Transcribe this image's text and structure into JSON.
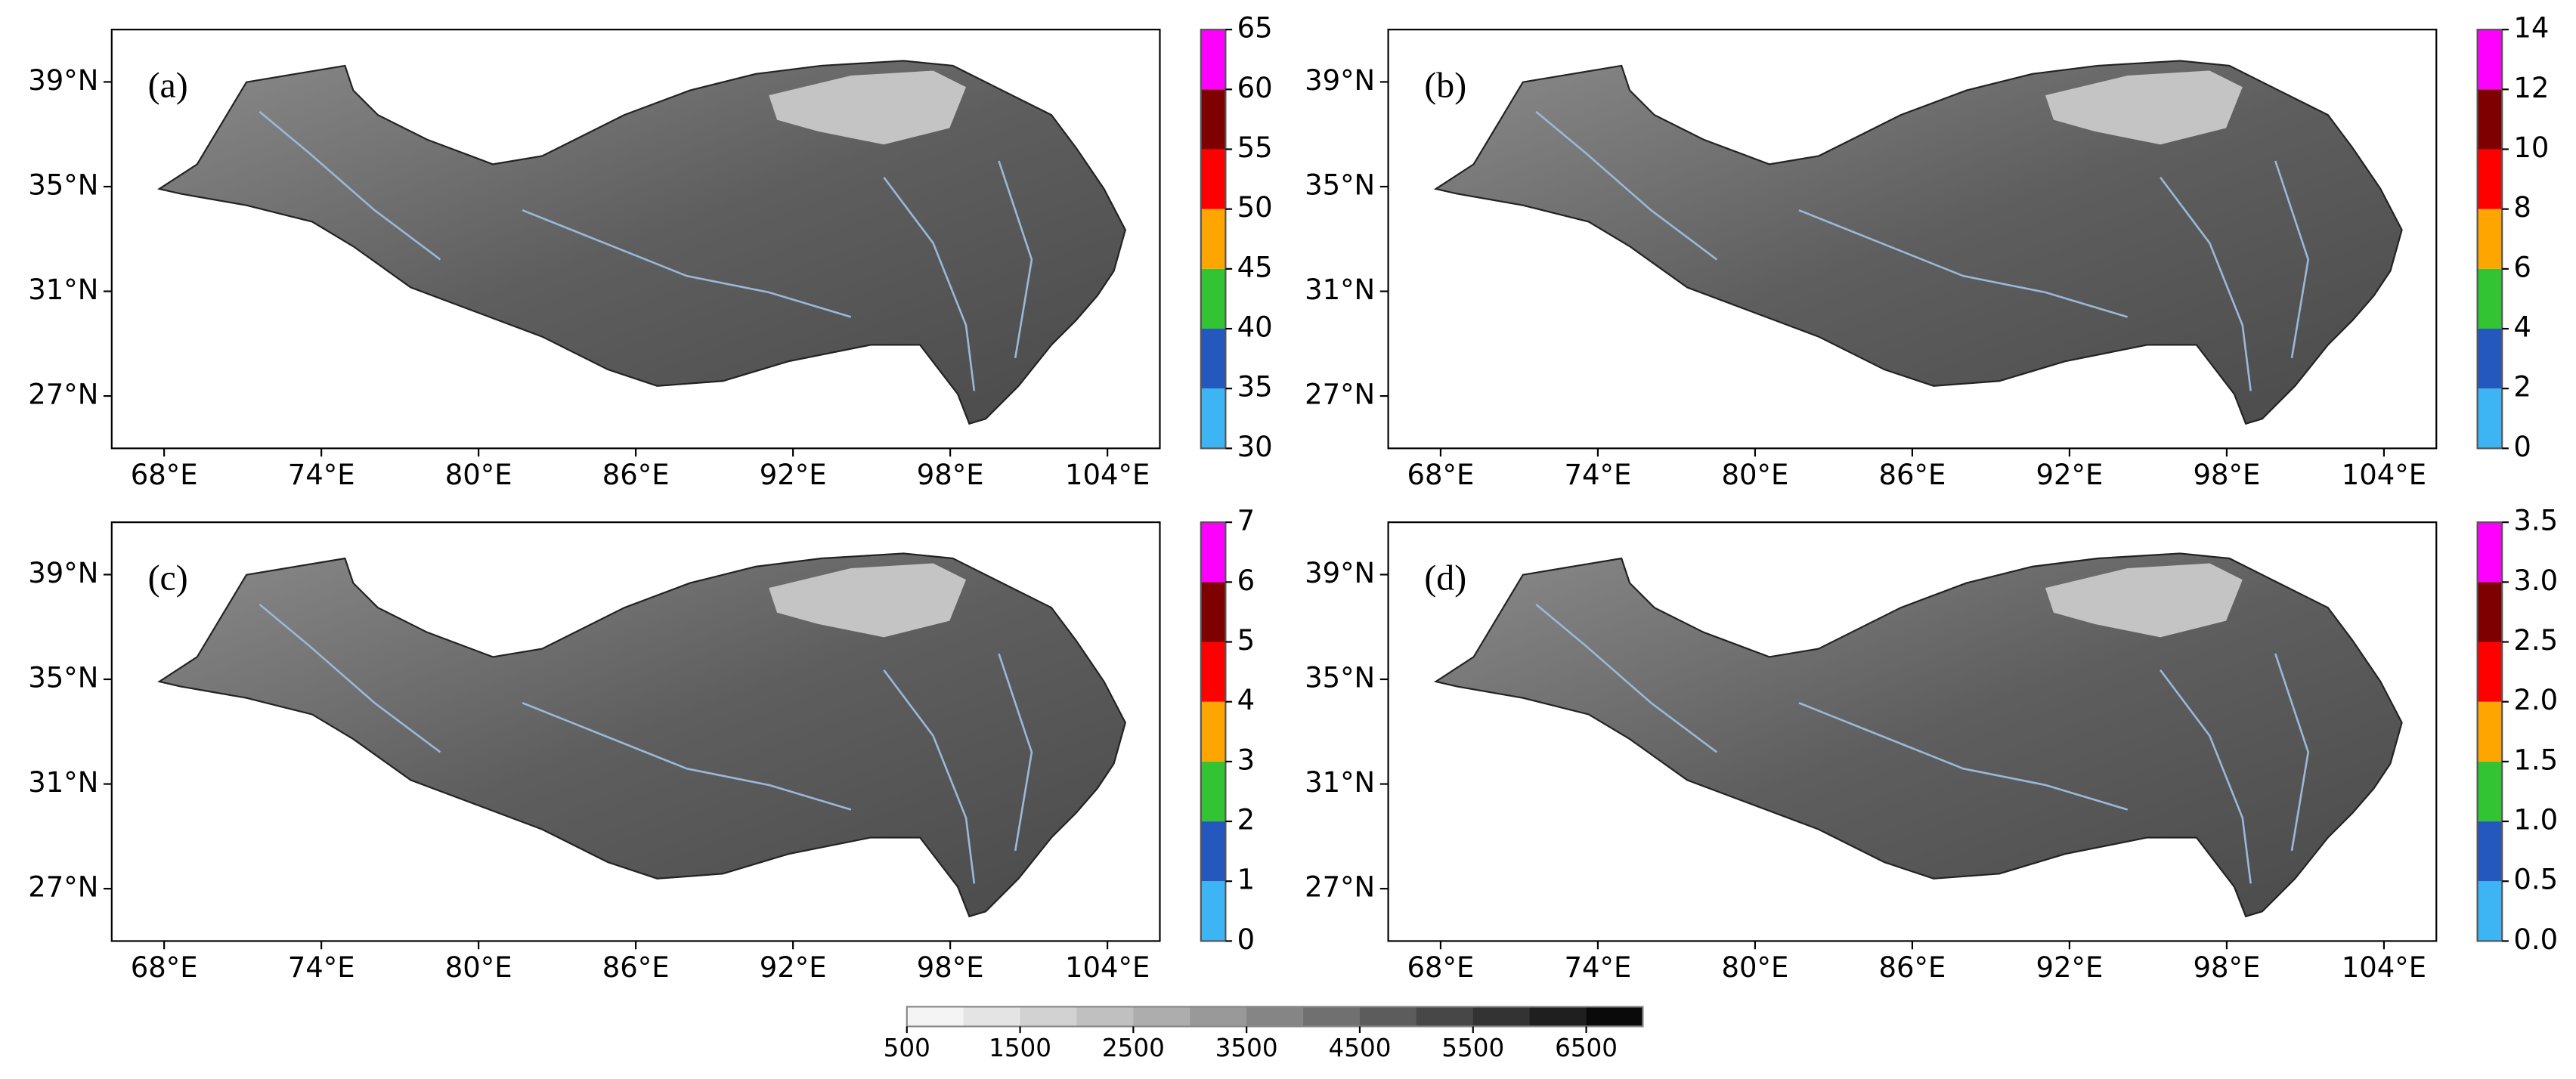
{
  "x_ticks": [
    {
      "value": 68,
      "label": "68°E"
    },
    {
      "value": 74,
      "label": "74°E"
    },
    {
      "value": 80,
      "label": "80°E"
    },
    {
      "value": 86,
      "label": "86°E"
    },
    {
      "value": 92,
      "label": "92°E"
    },
    {
      "value": 98,
      "label": "98°E"
    },
    {
      "value": 104,
      "label": "104°E"
    }
  ],
  "xlim": [
    66,
    106
  ],
  "y_ticks": [
    {
      "value": 27,
      "label": "27°N"
    },
    {
      "value": 31,
      "label": "31°N"
    },
    {
      "value": 35,
      "label": "35°N"
    },
    {
      "value": 39,
      "label": "39°N"
    }
  ],
  "ylim": [
    25,
    41
  ],
  "class_colors": [
    "#3db5f5",
    "#2458bf",
    "#33c433",
    "#ffa500",
    "#ff0000",
    "#7f0000",
    "#ff00ff"
  ],
  "panels": [
    {
      "label": "(a)",
      "colorbar_ticks": [
        30,
        35,
        40,
        45,
        50,
        55,
        60,
        65
      ]
    },
    {
      "label": "(b)",
      "colorbar_ticks": [
        0,
        2,
        4,
        6,
        8,
        10,
        12,
        14
      ]
    },
    {
      "label": "(c)",
      "colorbar_ticks": [
        0,
        1,
        2,
        3,
        4,
        5,
        6,
        7
      ]
    },
    {
      "label": "(d)",
      "colorbar_ticks": [
        {
          "value": 0,
          "label": "0.0"
        },
        0.5,
        {
          "value": 1,
          "label": "1.0"
        },
        1.5,
        {
          "value": 2,
          "label": "2.0"
        },
        2.5,
        {
          "value": 3,
          "label": "3.0"
        },
        3.5
      ]
    }
  ],
  "elevation_colorbar": {
    "lim": [
      500,
      7000
    ],
    "ticks": [
      500,
      1500,
      2500,
      3500,
      4500,
      5500,
      6500
    ],
    "colors": [
      "#f4f4f4",
      "#e4e4e4",
      "#d2d2d2",
      "#c0c0c0",
      "#adadad",
      "#999999",
      "#858585",
      "#707070",
      "#5c5c5c",
      "#474747",
      "#333333",
      "#1f1f1f",
      "#0a0a0a"
    ]
  }
}
